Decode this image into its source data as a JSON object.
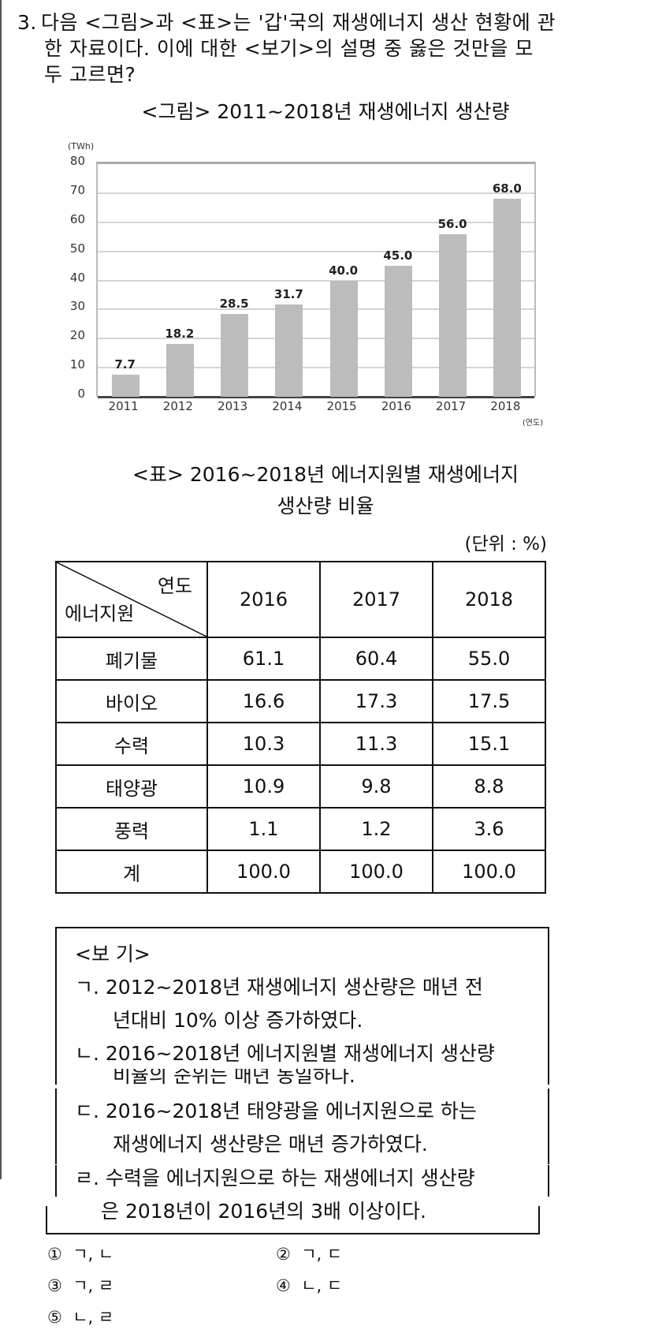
{
  "question": {
    "number": "3.",
    "lines": [
      "다음 <그림>과 <표>는 '갑'국의 재생에너지 생산 현황에 관",
      "한 자료이다. 이에 대한 <보기>의 설명 중 옳은 것만을 모",
      "두 고르면?"
    ]
  },
  "figure": {
    "title": "<그림> 2011~2018년 재생에너지 생산량"
  },
  "chart_data": {
    "type": "bar",
    "title": "<그림> 2011~2018년 재생에너지 생산량",
    "categories": [
      "2011",
      "2012",
      "2013",
      "2014",
      "2015",
      "2016",
      "2017",
      "2018"
    ],
    "values": [
      7.7,
      18.2,
      28.5,
      31.7,
      40.0,
      45.0,
      56.0,
      68.0
    ],
    "value_labels": [
      "7.7",
      "18.2",
      "28.5",
      "31.7",
      "40.0",
      "45.0",
      "56.0",
      "68.0"
    ],
    "xlabel": "(연도)",
    "ylabel": "(TWh)",
    "ylim": [
      0,
      80
    ],
    "yticks": [
      "0",
      "10",
      "20",
      "30",
      "40",
      "50",
      "60",
      "70",
      "80"
    ],
    "grid": true,
    "bar_color": "#bcbcbc"
  },
  "table": {
    "title_line1": "<표> 2016~2018년 에너지원별 재생에너지",
    "title_line2": "생산량 비율",
    "unit": "(단위 : %)",
    "corner_top": "연도",
    "corner_bottom": "에너지원",
    "columns": [
      "2016",
      "2017",
      "2018"
    ],
    "rows": [
      {
        "label": "폐기물",
        "values": [
          "61.1",
          "60.4",
          "55.0"
        ]
      },
      {
        "label": "바이오",
        "values": [
          "16.6",
          "17.3",
          "17.5"
        ]
      },
      {
        "label": "수력",
        "values": [
          "10.3",
          "11.3",
          "15.1"
        ]
      },
      {
        "label": "태양광",
        "values": [
          "10.9",
          "9.8",
          "8.8"
        ]
      },
      {
        "label": "풍력",
        "values": [
          "1.1",
          "1.2",
          "3.6"
        ]
      },
      {
        "label": "계",
        "values": [
          "100.0",
          "100.0",
          "100.0"
        ]
      }
    ]
  },
  "bogi": {
    "title": "<보  기>",
    "items": [
      {
        "line1": "ㄱ. 2012~2018년 재생에너지 생산량은 매년 전",
        "line2": "년대비 10% 이상 증가하였다."
      },
      {
        "line1": "ㄴ. 2016~2018년 에너지원별 재생에너지 생산량",
        "line2": "비율의 순위는 매년 동일하다."
      },
      {
        "line1": "ㄷ. 2016~2018년 태양광을 에너지원으로 하는",
        "line2": "재생에너지 생산량은 매년 증가하였다."
      },
      {
        "line1": "ㄹ. 수력을 에너지원으로 하는 재생에너지 생산량",
        "line2": "은 2018년이 2016년의 3배 이상이다."
      }
    ]
  },
  "choices": [
    {
      "num": "①",
      "text": "ㄱ, ㄴ"
    },
    {
      "num": "②",
      "text": "ㄱ, ㄷ"
    },
    {
      "num": "③",
      "text": "ㄱ, ㄹ"
    },
    {
      "num": "④",
      "text": "ㄴ, ㄷ"
    },
    {
      "num": "⑤",
      "text": "ㄴ, ㄹ"
    }
  ]
}
